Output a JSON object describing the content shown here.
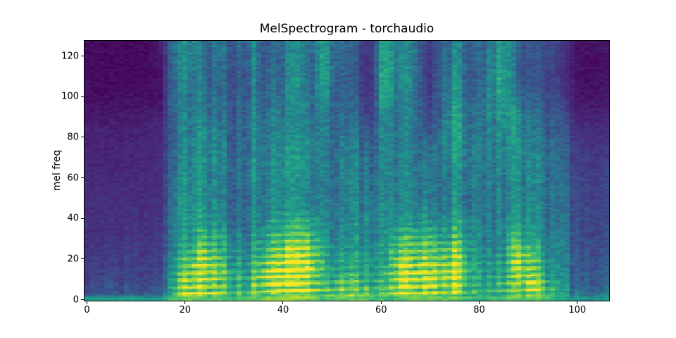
{
  "figure": {
    "background": "#ffffff",
    "text_color": "#000000"
  },
  "chart_data": {
    "type": "heatmap",
    "title": "MelSpectrogram - torchaudio",
    "xlabel": "",
    "ylabel": "mel freq",
    "x_ticks": [
      0,
      20,
      40,
      60,
      80,
      100
    ],
    "y_ticks": [
      0,
      20,
      40,
      60,
      80,
      100,
      120
    ],
    "x_range": [
      0,
      107
    ],
    "y_range": [
      0,
      128
    ],
    "grid": false,
    "legend": "none",
    "colormap": "viridis",
    "colormap_stops": [
      "#440154",
      "#482878",
      "#3e4989",
      "#31688e",
      "#26828e",
      "#1f9e89",
      "#35b779",
      "#6ece58",
      "#b5de2b",
      "#fde725"
    ],
    "intensity_note": "relative power 0-100 (viridis), downsampled to 36 time columns (t=0..107 frames) x 16 mel rows; rows ordered top (mel 128) to bottom (mel 0)",
    "grid_cols": 36,
    "grid_rows": 16,
    "intensity_rows": [
      [
        3,
        3,
        3,
        3,
        3,
        8,
        42,
        48,
        35,
        40,
        28,
        45,
        30,
        35,
        42,
        38,
        50,
        35,
        30,
        15,
        56,
        42,
        48,
        16,
        35,
        42,
        28,
        40,
        58,
        28,
        24,
        25,
        18,
        5,
        5,
        6
      ],
      [
        3,
        3,
        3,
        3,
        3,
        6,
        40,
        45,
        32,
        38,
        26,
        42,
        32,
        33,
        45,
        36,
        52,
        33,
        28,
        12,
        58,
        40,
        46,
        14,
        38,
        44,
        26,
        42,
        60,
        25,
        22,
        24,
        16,
        5,
        4,
        5
      ],
      [
        3,
        3,
        3,
        3,
        3,
        5,
        42,
        42,
        35,
        36,
        25,
        40,
        35,
        32,
        48,
        35,
        54,
        32,
        27,
        11,
        60,
        40,
        46,
        13,
        40,
        46,
        25,
        44,
        62,
        26,
        24,
        23,
        15,
        5,
        4,
        5
      ],
      [
        3,
        3,
        3,
        4,
        4,
        6,
        40,
        40,
        38,
        35,
        26,
        38,
        38,
        35,
        45,
        38,
        50,
        33,
        28,
        12,
        58,
        38,
        45,
        14,
        42,
        48,
        27,
        45,
        60,
        30,
        27,
        25,
        17,
        6,
        5,
        6
      ],
      [
        6,
        6,
        6,
        7,
        7,
        8,
        38,
        42,
        40,
        38,
        28,
        40,
        40,
        42,
        42,
        40,
        44,
        35,
        32,
        16,
        52,
        36,
        44,
        18,
        45,
        52,
        31,
        46,
        56,
        42,
        32,
        28,
        22,
        9,
        8,
        9
      ],
      [
        9,
        9,
        9,
        9,
        10,
        11,
        36,
        44,
        45,
        42,
        30,
        42,
        42,
        45,
        40,
        44,
        40,
        38,
        36,
        22,
        46,
        36,
        44,
        24,
        48,
        54,
        35,
        46,
        52,
        44,
        36,
        32,
        27,
        13,
        12,
        13
      ],
      [
        10,
        10,
        10,
        10,
        11,
        12,
        38,
        46,
        48,
        45,
        32,
        44,
        44,
        48,
        45,
        48,
        38,
        40,
        40,
        30,
        44,
        38,
        45,
        30,
        50,
        52,
        37,
        45,
        50,
        45,
        40,
        36,
        30,
        16,
        15,
        16
      ],
      [
        11,
        11,
        11,
        11,
        12,
        13,
        40,
        48,
        50,
        46,
        34,
        45,
        46,
        50,
        48,
        50,
        40,
        42,
        42,
        36,
        44,
        40,
        46,
        36,
        48,
        48,
        39,
        44,
        48,
        44,
        42,
        38,
        32,
        18,
        17,
        18
      ],
      [
        12,
        12,
        12,
        12,
        13,
        14,
        42,
        50,
        48,
        44,
        35,
        44,
        45,
        48,
        46,
        48,
        40,
        42,
        43,
        38,
        44,
        40,
        45,
        40,
        45,
        45,
        39,
        43,
        46,
        43,
        42,
        39,
        34,
        20,
        19,
        20
      ],
      [
        13,
        13,
        13,
        13,
        13,
        15,
        44,
        48,
        46,
        42,
        34,
        42,
        44,
        46,
        44,
        46,
        40,
        40,
        42,
        42,
        43,
        42,
        45,
        42,
        44,
        44,
        38,
        42,
        45,
        42,
        41,
        38,
        34,
        21,
        20,
        21
      ],
      [
        13,
        14,
        14,
        14,
        14,
        16,
        46,
        52,
        50,
        48,
        36,
        44,
        48,
        52,
        50,
        52,
        42,
        42,
        44,
        44,
        44,
        44,
        50,
        48,
        48,
        50,
        40,
        44,
        46,
        46,
        44,
        40,
        36,
        22,
        21,
        22
      ],
      [
        14,
        14,
        15,
        15,
        15,
        17,
        48,
        56,
        58,
        55,
        40,
        46,
        55,
        62,
        65,
        68,
        46,
        45,
        46,
        46,
        46,
        55,
        62,
        60,
        58,
        60,
        44,
        46,
        48,
        55,
        48,
        42,
        38,
        23,
        22,
        23
      ],
      [
        16,
        16,
        16,
        17,
        17,
        19,
        52,
        62,
        72,
        65,
        48,
        50,
        68,
        78,
        82,
        85,
        52,
        50,
        50,
        50,
        50,
        70,
        76,
        74,
        72,
        74,
        50,
        50,
        52,
        75,
        58,
        46,
        40,
        25,
        24,
        25
      ],
      [
        18,
        18,
        18,
        19,
        19,
        21,
        58,
        75,
        85,
        72,
        55,
        56,
        80,
        88,
        90,
        92,
        58,
        58,
        56,
        56,
        55,
        80,
        85,
        84,
        82,
        85,
        56,
        55,
        58,
        82,
        72,
        52,
        44,
        27,
        26,
        28
      ],
      [
        20,
        22,
        22,
        22,
        23,
        26,
        66,
        85,
        80,
        76,
        60,
        64,
        88,
        92,
        85,
        88,
        62,
        70,
        68,
        64,
        60,
        82,
        88,
        86,
        86,
        82,
        60,
        60,
        66,
        70,
        85,
        64,
        50,
        30,
        30,
        32
      ],
      [
        26,
        26,
        27,
        27,
        28,
        34,
        74,
        88,
        82,
        80,
        68,
        72,
        85,
        88,
        84,
        86,
        70,
        80,
        78,
        74,
        68,
        80,
        84,
        82,
        84,
        80,
        66,
        68,
        74,
        72,
        80,
        74,
        58,
        38,
        38,
        40
      ]
    ],
    "bottom_edge": [
      55,
      55,
      55,
      55,
      55,
      58,
      72,
      78,
      75,
      74,
      68,
      70,
      80,
      82,
      80,
      80,
      70,
      75,
      74,
      72,
      68,
      70,
      78,
      76,
      76,
      74,
      64,
      66,
      70,
      72,
      74,
      68,
      60,
      52,
      52,
      55
    ]
  }
}
